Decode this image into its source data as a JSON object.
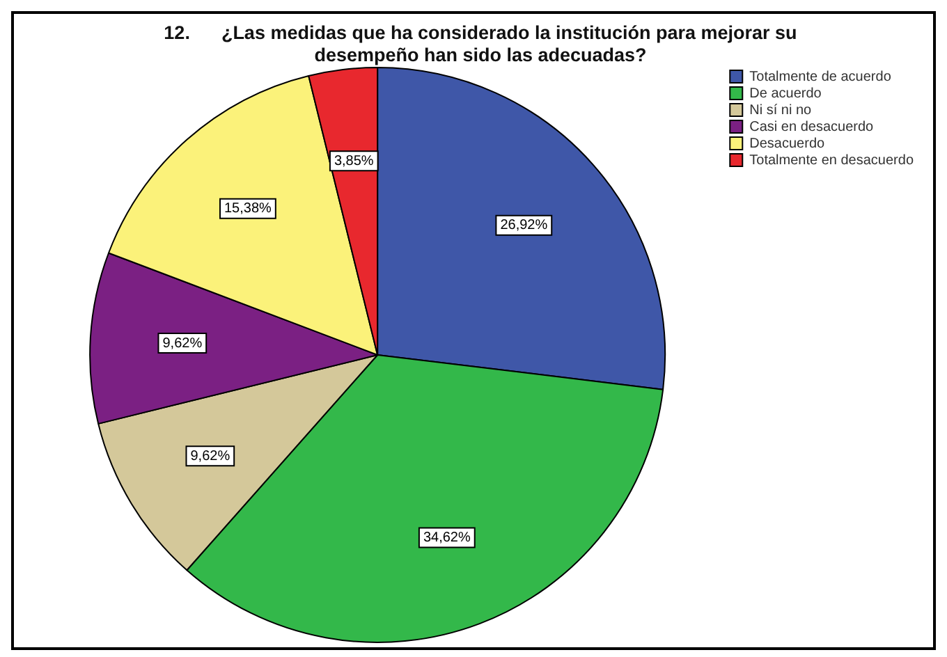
{
  "chart_data": {
    "type": "pie",
    "title": "12.      ¿Las medidas que ha considerado la institución para mejorar su desempeño han sido las adecuadas?",
    "categories": [
      "Totalmente de acuerdo",
      "De acuerdo",
      "Ni sí ni no",
      "Casi en desacuerdo",
      "Desacuerdo",
      "Totalmente en desacuerdo"
    ],
    "values": [
      26.92,
      34.62,
      9.62,
      9.62,
      15.38,
      3.85
    ],
    "colors": [
      "#3f57a8",
      "#33b84a",
      "#d4c89a",
      "#7b2083",
      "#fbf27a",
      "#e8282e"
    ],
    "value_labels": [
      "26,92%",
      "34,62%",
      "9,62%",
      "9,62%",
      "15,38%",
      "3,85%"
    ],
    "legend": "top right"
  }
}
